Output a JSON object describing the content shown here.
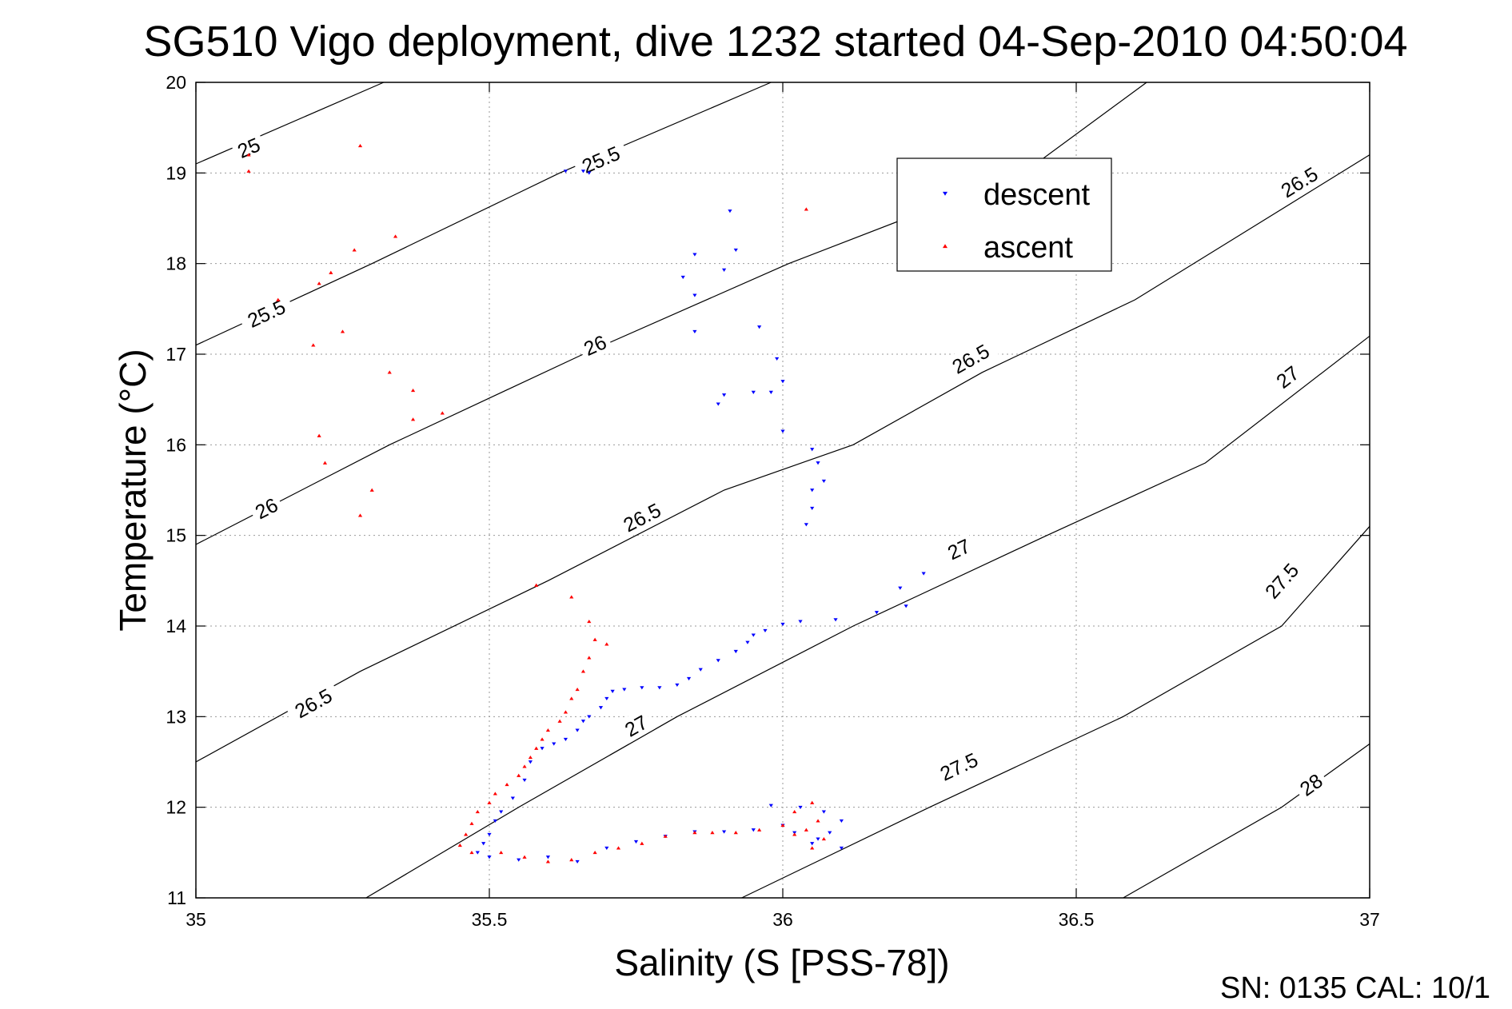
{
  "chart_data": {
    "type": "scatter",
    "title": "SG510 Vigo deployment, dive 1232 started 04-Sep-2010 04:50:04",
    "xlabel": "Salinity (S [PSS-78])",
    "ylabel": "Temperature (°C)",
    "xlim": [
      35,
      37
    ],
    "ylim": [
      11,
      20
    ],
    "xticks": [
      35,
      35.5,
      36,
      36.5,
      37
    ],
    "xtick_labels": [
      "35",
      "35.5",
      "36",
      "36.5",
      "37"
    ],
    "yticks": [
      11,
      12,
      13,
      14,
      15,
      16,
      17,
      18,
      19,
      20
    ],
    "ytick_labels": [
      "11",
      "12",
      "13",
      "14",
      "15",
      "16",
      "17",
      "18",
      "19",
      "20"
    ],
    "grid": true,
    "legend_position": "upper-right",
    "footer": "SN: 0135  CAL: 10/1",
    "density_contours": [
      {
        "label": "25",
        "points": [
          [
            35.0,
            19.1
          ],
          [
            35.32,
            20.0
          ]
        ],
        "label_at": [
          [
            35.09,
            19.28
          ]
        ]
      },
      {
        "label": "25.5",
        "points": [
          [
            35.0,
            17.1
          ],
          [
            35.3,
            18.0
          ],
          [
            35.62,
            19.0
          ],
          [
            35.98,
            20.0
          ]
        ],
        "label_at": [
          [
            35.12,
            17.45
          ],
          [
            35.69,
            19.15
          ]
        ]
      },
      {
        "label": "26",
        "points": [
          [
            35.0,
            14.9
          ],
          [
            35.33,
            16.0
          ],
          [
            35.66,
            17.0
          ],
          [
            36.01,
            18.0
          ],
          [
            36.41,
            19.0
          ],
          [
            36.62,
            20.0
          ]
        ],
        "label_at": [
          [
            35.12,
            15.3
          ],
          [
            35.68,
            17.1
          ]
        ]
      },
      {
        "label": "26.5",
        "points": [
          [
            35.0,
            12.5
          ],
          [
            35.28,
            13.5
          ],
          [
            35.6,
            14.5
          ],
          [
            35.9,
            15.5
          ],
          [
            36.12,
            16.0
          ],
          [
            36.34,
            16.8
          ],
          [
            36.6,
            17.6
          ],
          [
            37.0,
            19.2
          ]
        ],
        "label_at": [
          [
            35.2,
            13.15
          ],
          [
            35.76,
            15.2
          ],
          [
            36.32,
            16.95
          ],
          [
            36.88,
            18.9
          ]
        ]
      },
      {
        "label": "27",
        "points": [
          [
            35.29,
            11.0
          ],
          [
            35.55,
            12.0
          ],
          [
            35.82,
            13.0
          ],
          [
            36.12,
            14.0
          ],
          [
            36.45,
            15.0
          ],
          [
            36.72,
            15.8
          ],
          [
            37.0,
            17.2
          ]
        ],
        "label_at": [
          [
            35.75,
            12.9
          ],
          [
            36.3,
            14.85
          ],
          [
            36.86,
            16.75
          ]
        ]
      },
      {
        "label": "27.5",
        "points": [
          [
            35.93,
            11.0
          ],
          [
            36.25,
            12.0
          ],
          [
            36.58,
            13.0
          ],
          [
            36.85,
            14.0
          ],
          [
            37.0,
            15.1
          ]
        ],
        "label_at": [
          [
            36.3,
            12.45
          ],
          [
            36.85,
            14.5
          ]
        ]
      },
      {
        "label": "28",
        "points": [
          [
            36.58,
            11.0
          ],
          [
            36.85,
            12.0
          ],
          [
            37.0,
            12.7
          ]
        ],
        "label_at": [
          [
            36.9,
            12.25
          ]
        ]
      }
    ],
    "series": [
      {
        "name": "descent",
        "color": "#0000ff",
        "marker": "triangle-down",
        "points": [
          [
            35.63,
            19.02
          ],
          [
            35.66,
            19.02
          ],
          [
            35.67,
            19.0
          ],
          [
            35.91,
            18.58
          ],
          [
            35.85,
            18.1
          ],
          [
            35.92,
            18.15
          ],
          [
            35.9,
            17.93
          ],
          [
            35.83,
            17.85
          ],
          [
            35.85,
            17.65
          ],
          [
            35.85,
            17.25
          ],
          [
            35.96,
            17.3
          ],
          [
            35.99,
            16.95
          ],
          [
            36.0,
            16.7
          ],
          [
            35.98,
            16.58
          ],
          [
            35.95,
            16.58
          ],
          [
            35.9,
            16.55
          ],
          [
            35.89,
            16.45
          ],
          [
            36.0,
            16.15
          ],
          [
            36.05,
            15.95
          ],
          [
            36.06,
            15.8
          ],
          [
            36.07,
            15.6
          ],
          [
            36.05,
            15.5
          ],
          [
            36.05,
            15.3
          ],
          [
            36.04,
            15.12
          ],
          [
            36.24,
            14.58
          ],
          [
            36.2,
            14.42
          ],
          [
            36.16,
            14.15
          ],
          [
            36.21,
            14.22
          ],
          [
            36.09,
            14.07
          ],
          [
            36.03,
            14.05
          ],
          [
            36.0,
            14.02
          ],
          [
            35.97,
            13.95
          ],
          [
            35.95,
            13.9
          ],
          [
            35.94,
            13.82
          ],
          [
            35.92,
            13.72
          ],
          [
            35.89,
            13.62
          ],
          [
            35.86,
            13.52
          ],
          [
            35.84,
            13.42
          ],
          [
            35.82,
            13.35
          ],
          [
            35.79,
            13.32
          ],
          [
            35.76,
            13.32
          ],
          [
            35.73,
            13.3
          ],
          [
            35.71,
            13.28
          ],
          [
            35.7,
            13.2
          ],
          [
            35.69,
            13.1
          ],
          [
            35.67,
            13.0
          ],
          [
            35.66,
            12.95
          ],
          [
            35.65,
            12.85
          ],
          [
            35.63,
            12.75
          ],
          [
            35.61,
            12.7
          ],
          [
            35.59,
            12.65
          ],
          [
            35.57,
            12.5
          ],
          [
            35.56,
            12.3
          ],
          [
            35.54,
            12.1
          ],
          [
            35.52,
            11.95
          ],
          [
            35.51,
            11.85
          ],
          [
            35.5,
            11.7
          ],
          [
            35.49,
            11.6
          ],
          [
            35.48,
            11.5
          ],
          [
            35.5,
            11.45
          ],
          [
            35.55,
            11.42
          ],
          [
            35.6,
            11.45
          ],
          [
            35.65,
            11.4
          ],
          [
            35.7,
            11.55
          ],
          [
            35.75,
            11.62
          ],
          [
            35.8,
            11.68
          ],
          [
            35.85,
            11.73
          ],
          [
            35.9,
            11.73
          ],
          [
            35.95,
            11.75
          ],
          [
            36.0,
            11.8
          ],
          [
            35.98,
            12.02
          ],
          [
            36.03,
            12.0
          ],
          [
            36.07,
            11.95
          ],
          [
            36.1,
            11.85
          ],
          [
            36.08,
            11.72
          ],
          [
            36.06,
            11.65
          ],
          [
            36.1,
            11.55
          ],
          [
            36.05,
            11.6
          ],
          [
            36.02,
            11.72
          ]
        ]
      },
      {
        "name": "ascent",
        "color": "#ff0000",
        "marker": "triangle-up",
        "points": [
          [
            35.09,
            19.2
          ],
          [
            35.09,
            19.02
          ],
          [
            35.28,
            19.3
          ],
          [
            36.04,
            18.6
          ],
          [
            35.34,
            18.3
          ],
          [
            35.27,
            18.15
          ],
          [
            35.23,
            17.9
          ],
          [
            35.21,
            17.78
          ],
          [
            35.14,
            17.6
          ],
          [
            35.25,
            17.25
          ],
          [
            35.2,
            17.1
          ],
          [
            35.33,
            16.8
          ],
          [
            35.37,
            16.6
          ],
          [
            35.42,
            16.35
          ],
          [
            35.37,
            16.28
          ],
          [
            35.21,
            16.1
          ],
          [
            35.22,
            15.8
          ],
          [
            35.3,
            15.5
          ],
          [
            35.28,
            15.22
          ],
          [
            35.58,
            14.45
          ],
          [
            35.64,
            14.32
          ],
          [
            35.67,
            14.05
          ],
          [
            35.68,
            13.85
          ],
          [
            35.7,
            13.8
          ],
          [
            35.67,
            13.65
          ],
          [
            35.66,
            13.5
          ],
          [
            35.65,
            13.3
          ],
          [
            35.64,
            13.2
          ],
          [
            35.63,
            13.05
          ],
          [
            35.62,
            12.95
          ],
          [
            35.6,
            12.85
          ],
          [
            35.59,
            12.75
          ],
          [
            35.58,
            12.65
          ],
          [
            35.57,
            12.55
          ],
          [
            35.56,
            12.45
          ],
          [
            35.55,
            12.35
          ],
          [
            35.53,
            12.25
          ],
          [
            35.51,
            12.15
          ],
          [
            35.5,
            12.05
          ],
          [
            35.48,
            11.95
          ],
          [
            35.47,
            11.82
          ],
          [
            35.46,
            11.7
          ],
          [
            35.45,
            11.58
          ],
          [
            35.47,
            11.5
          ],
          [
            35.52,
            11.5
          ],
          [
            35.56,
            11.45
          ],
          [
            35.6,
            11.4
          ],
          [
            35.64,
            11.42
          ],
          [
            35.68,
            11.5
          ],
          [
            35.72,
            11.55
          ],
          [
            35.76,
            11.6
          ],
          [
            35.8,
            11.68
          ],
          [
            35.85,
            11.72
          ],
          [
            35.88,
            11.72
          ],
          [
            35.92,
            11.72
          ],
          [
            35.96,
            11.75
          ],
          [
            36.0,
            11.8
          ],
          [
            36.02,
            11.95
          ],
          [
            36.05,
            12.05
          ],
          [
            36.06,
            11.85
          ],
          [
            36.04,
            11.75
          ],
          [
            36.07,
            11.65
          ],
          [
            36.05,
            11.55
          ],
          [
            36.02,
            11.7
          ]
        ]
      }
    ]
  }
}
